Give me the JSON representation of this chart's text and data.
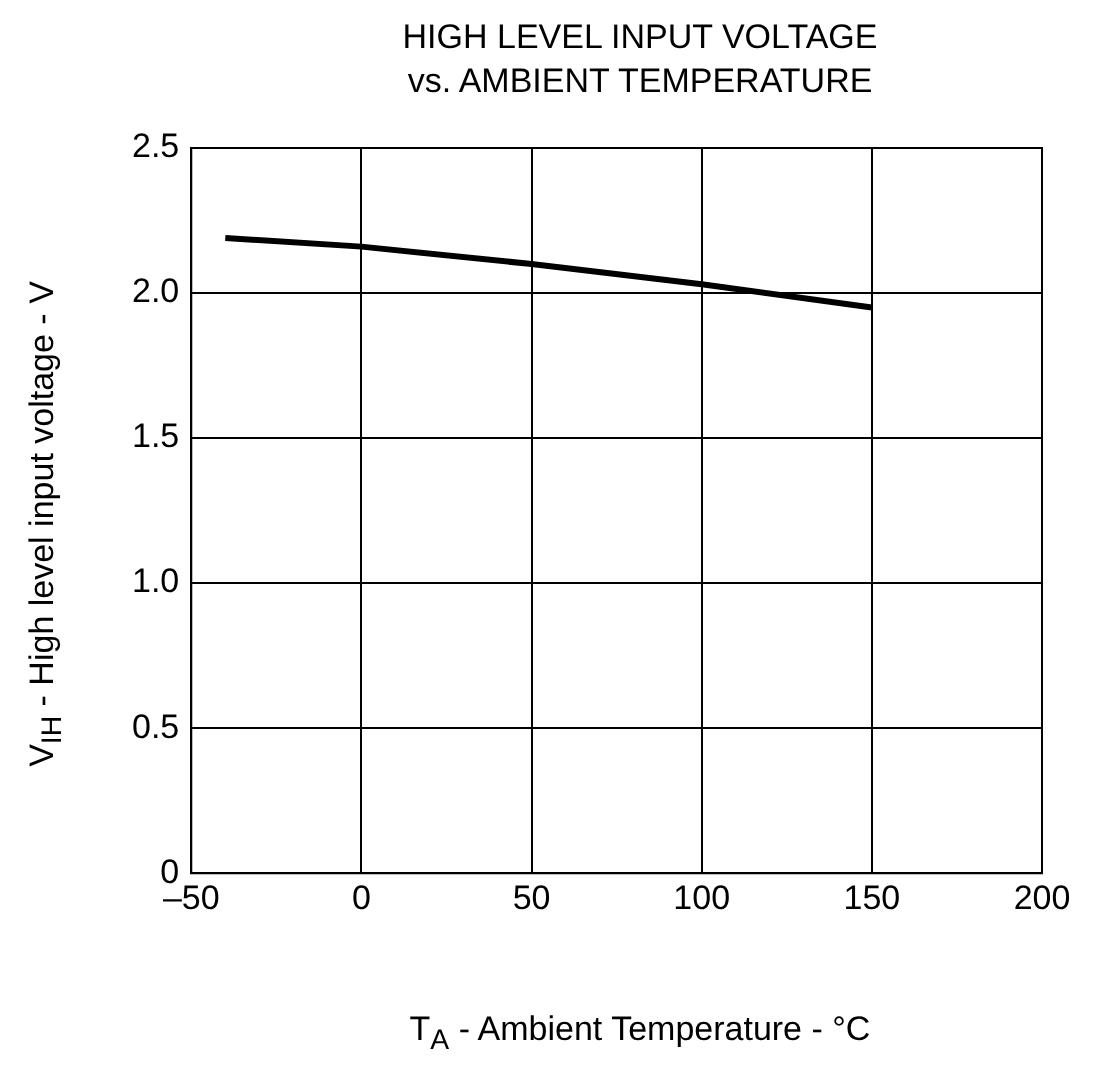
{
  "chart_data": {
    "type": "line",
    "title": "HIGH LEVEL INPUT VOLTAGE\nvs. AMBIENT TEMPERATURE",
    "xlabel": "T$_{A}$ - Ambient Temperature - °C",
    "ylabel": "V$_{IH}$ - High level input voltage - V",
    "x": [
      -40,
      0,
      50,
      100,
      150
    ],
    "series": [
      {
        "color": "#000000",
        "values": [
          2.19,
          2.16,
          2.1,
          2.03,
          1.95
        ]
      }
    ],
    "xlim": [
      -50,
      200
    ],
    "xticks": [
      {
        "value": -50,
        "label": "–50"
      },
      0,
      50,
      100,
      150,
      200
    ],
    "ylim": [
      0,
      2.5
    ],
    "yticks": [
      0,
      {
        "value": 0.5,
        "label": "0.5"
      },
      {
        "value": 1,
        "label": "1.0"
      },
      {
        "value": 1.5,
        "label": "1.5"
      },
      {
        "value": 2,
        "label": "2.0"
      },
      {
        "value": 2.5,
        "label": "2.5"
      }
    ],
    "grid": true,
    "legend": false,
    "marker": "none",
    "line_style": "solid"
  }
}
